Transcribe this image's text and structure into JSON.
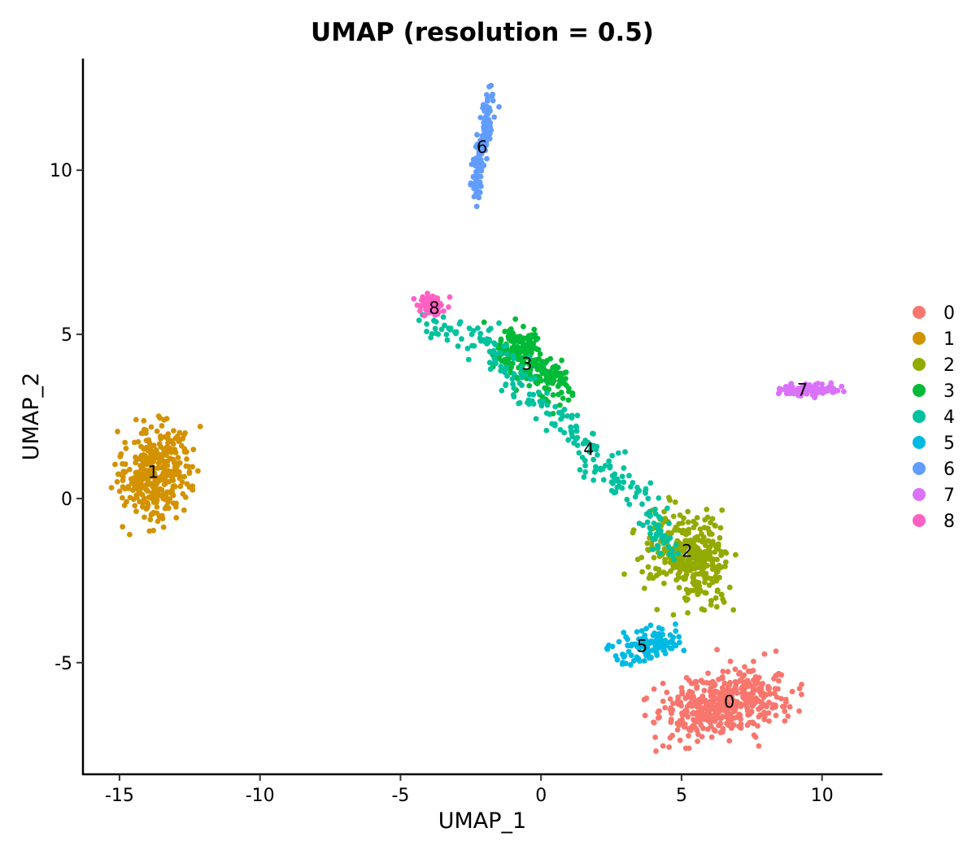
{
  "chart_data": {
    "type": "scatter",
    "title": "UMAP (resolution = 0.5)",
    "xlabel": "UMAP_1",
    "ylabel": "UMAP_2",
    "xlim": [
      -16.3,
      12.15
    ],
    "ylim": [
      -8.4,
      13.4
    ],
    "xticks": [
      -15,
      -10,
      -5,
      0,
      5,
      10
    ],
    "yticks": [
      -5,
      0,
      5,
      10
    ],
    "grid": false,
    "legend_position": "right",
    "note": "Individual cells are summarized per cluster as point-cloud descriptors (path of centers in UMAP units, spread, cell count)",
    "clusters": [
      {
        "id": "0",
        "color": "#F8766D",
        "n": 460,
        "label_at": [
          6.7,
          -6.2
        ],
        "path": [
          [
            5.0,
            -6.6
          ],
          [
            6.5,
            -6.3
          ],
          [
            7.8,
            -5.9
          ]
        ],
        "spread": [
          0.75,
          0.45
        ]
      },
      {
        "id": "1",
        "color": "#D39200",
        "n": 360,
        "label_at": [
          -13.8,
          0.8
        ],
        "path": [
          [
            -14.0,
            0.0
          ],
          [
            -13.8,
            0.8
          ],
          [
            -13.5,
            1.5
          ]
        ],
        "spread": [
          0.6,
          0.6
        ]
      },
      {
        "id": "2",
        "color": "#93AA00",
        "n": 360,
        "label_at": [
          5.2,
          -1.6
        ],
        "path": [
          [
            4.6,
            -1.3
          ],
          [
            5.3,
            -1.8
          ],
          [
            5.9,
            -2.3
          ]
        ],
        "spread": [
          0.6,
          0.55
        ]
      },
      {
        "id": "3",
        "color": "#00BA38",
        "n": 260,
        "label_at": [
          -0.5,
          4.1
        ],
        "path": [
          [
            -1.0,
            4.9
          ],
          [
            -0.5,
            4.2
          ],
          [
            0.5,
            3.3
          ]
        ],
        "spread": [
          0.4,
          0.3
        ]
      },
      {
        "id": "4",
        "color": "#00C19F",
        "n": 260,
        "label_at": [
          1.7,
          1.5
        ],
        "path": [
          [
            -4.2,
            5.4
          ],
          [
            -2.0,
            4.8
          ],
          [
            -0.5,
            3.2
          ],
          [
            1.2,
            2.0
          ],
          [
            2.5,
            0.8
          ],
          [
            3.8,
            -0.3
          ],
          [
            4.5,
            -1.5
          ]
        ],
        "spread": [
          0.3,
          0.25
        ]
      },
      {
        "id": "5",
        "color": "#00B9E3",
        "n": 110,
        "label_at": [
          3.6,
          -4.5
        ],
        "path": [
          [
            3.0,
            -4.8
          ],
          [
            3.8,
            -4.5
          ],
          [
            4.5,
            -4.2
          ]
        ],
        "spread": [
          0.35,
          0.25
        ]
      },
      {
        "id": "6",
        "color": "#619CFF",
        "n": 130,
        "label_at": [
          -2.1,
          10.7
        ],
        "path": [
          [
            -2.4,
            9.2
          ],
          [
            -2.1,
            10.7
          ],
          [
            -1.8,
            12.2
          ]
        ],
        "spread": [
          0.1,
          0.25
        ]
      },
      {
        "id": "7",
        "color": "#DB72FB",
        "n": 90,
        "label_at": [
          9.3,
          3.3
        ],
        "path": [
          [
            8.6,
            3.25
          ],
          [
            9.6,
            3.3
          ],
          [
            10.6,
            3.35
          ]
        ],
        "spread": [
          0.2,
          0.1
        ]
      },
      {
        "id": "8",
        "color": "#FF61C3",
        "n": 75,
        "label_at": [
          -3.8,
          5.8
        ],
        "path": [
          [
            -4.2,
            5.9
          ],
          [
            -3.9,
            6.0
          ],
          [
            -3.6,
            5.8
          ]
        ],
        "spread": [
          0.15,
          0.15
        ]
      }
    ]
  }
}
